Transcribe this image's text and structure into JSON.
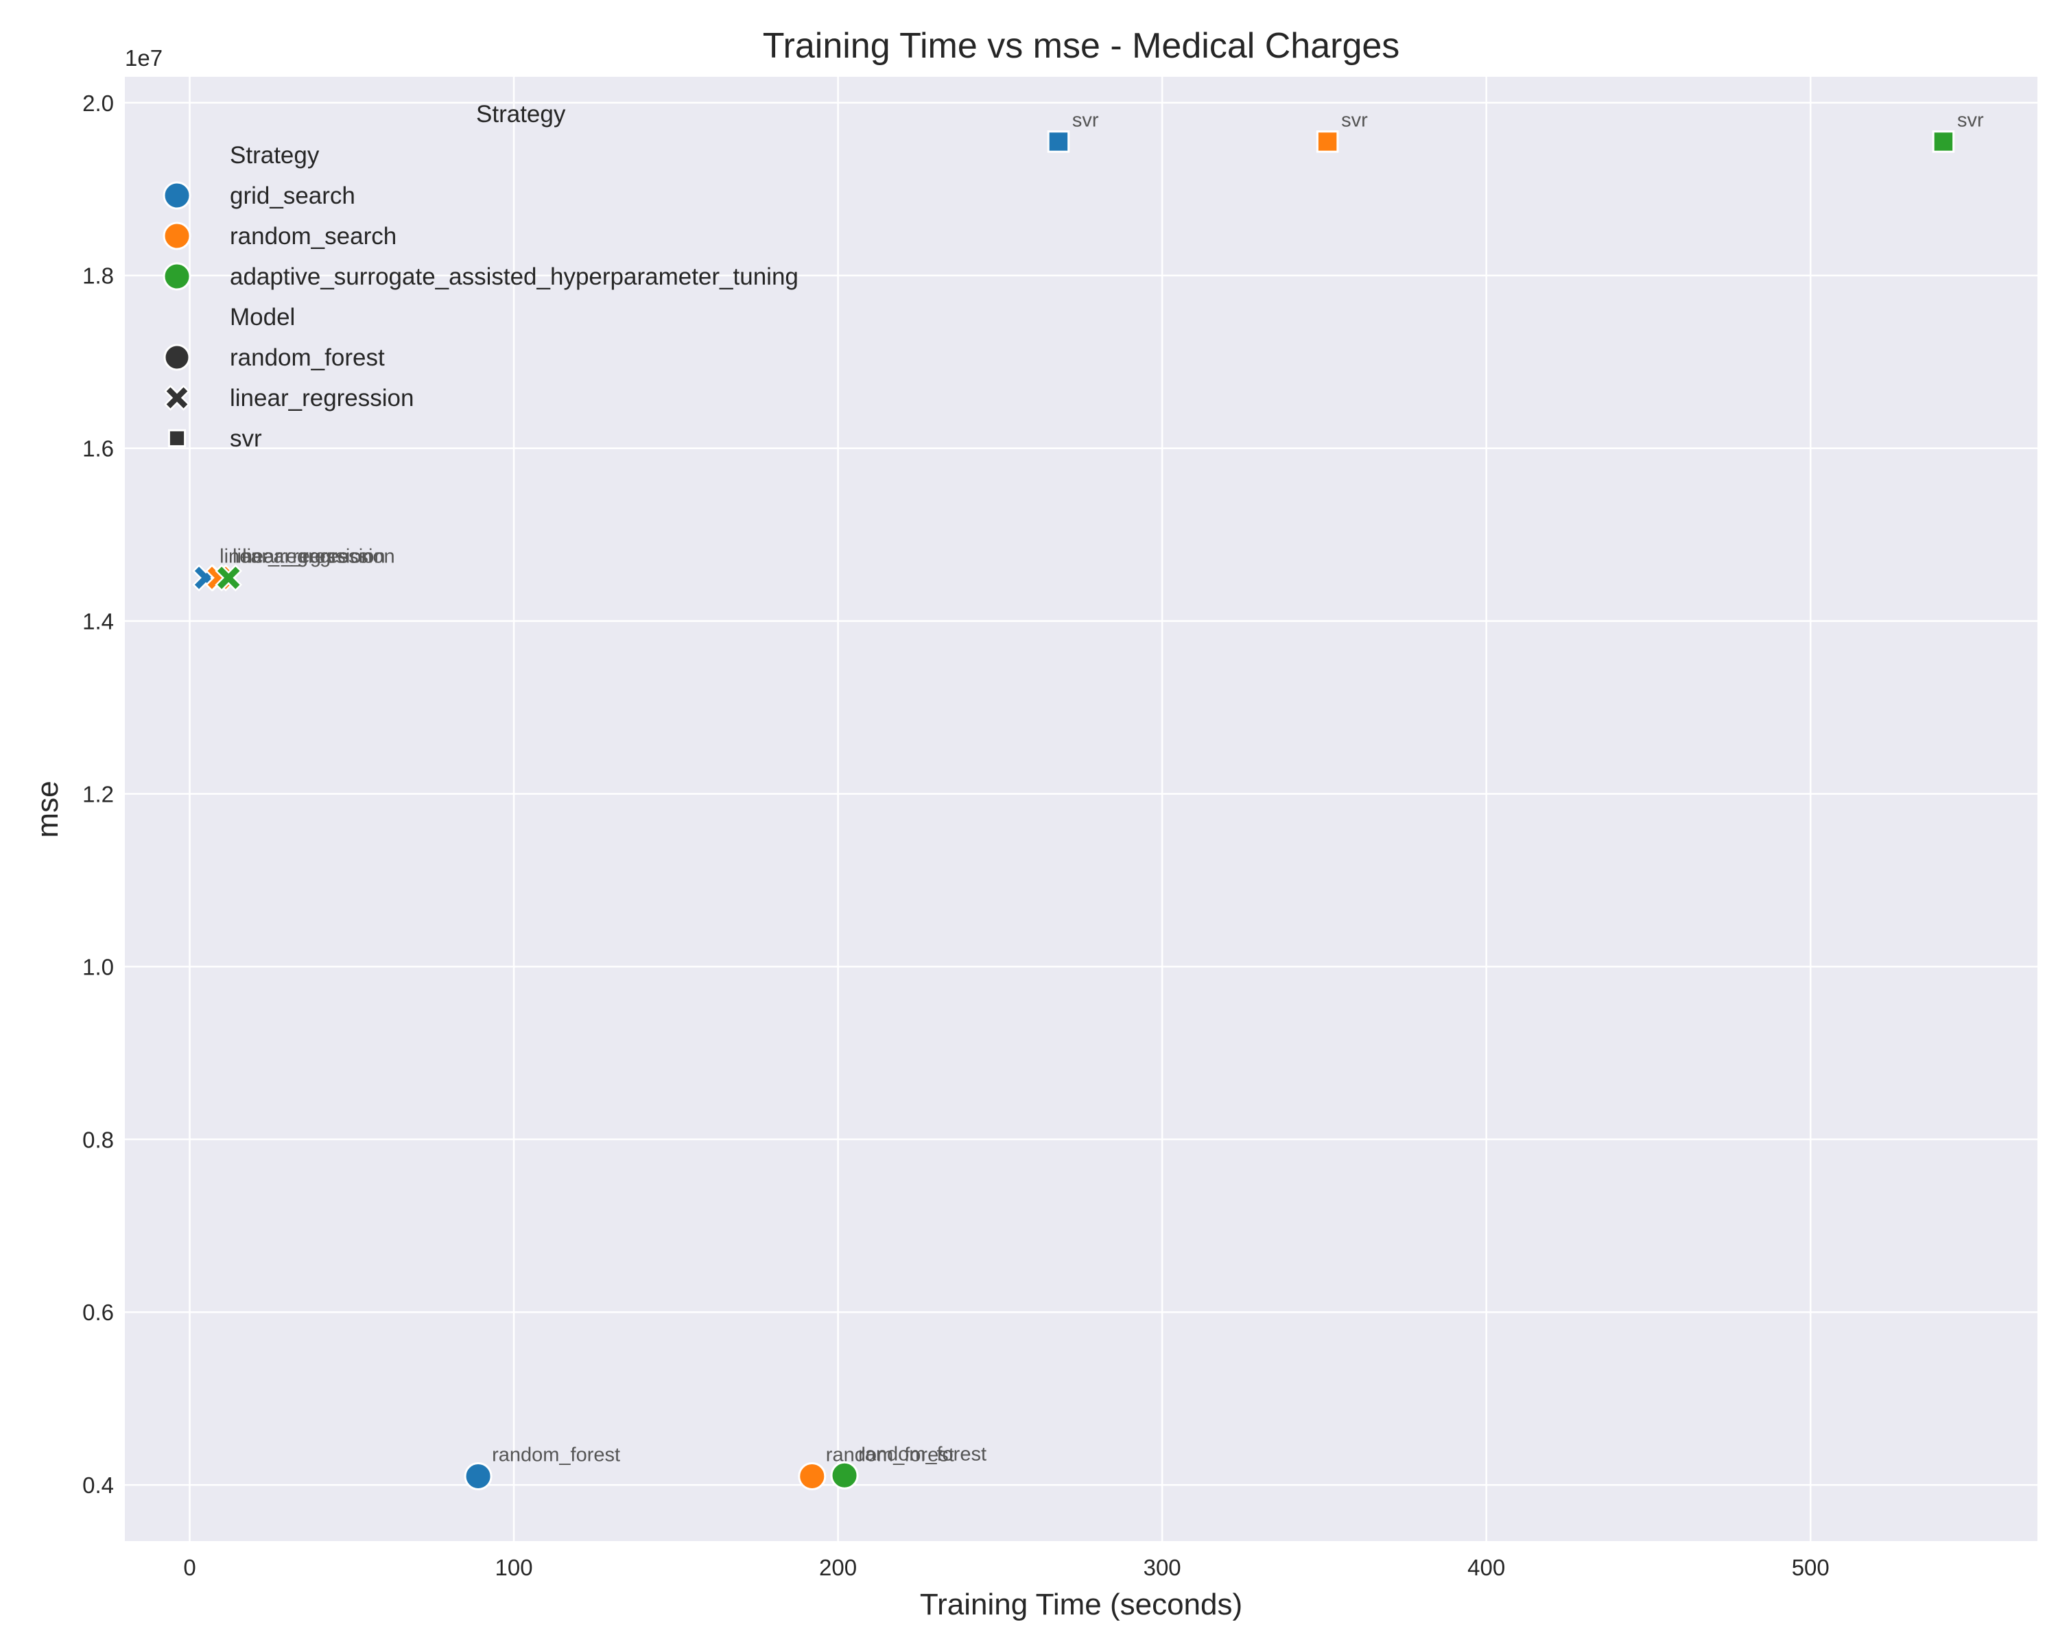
{
  "chart_data": {
    "type": "scatter",
    "title": "Training Time vs mse - Medical Charges",
    "xlabel": "Training Time (seconds)",
    "ylabel": "mse",
    "y_offset_text": "1e7",
    "xlim": [
      -20,
      570
    ],
    "ylim": [
      3.35,
      20.3
    ],
    "y_scale_note": "values in units of 1e7 shown as tick labels; data values in raw mse",
    "xticks": [
      0,
      100,
      200,
      300,
      400,
      500
    ],
    "xtick_labels": [
      "0",
      "100",
      "200",
      "300",
      "400",
      "500"
    ],
    "yticks": [
      4,
      6,
      8,
      10,
      12,
      14,
      16,
      18,
      20
    ],
    "ytick_labels": [
      "0.4",
      "0.6",
      "0.8",
      "1.0",
      "1.2",
      "1.4",
      "1.6",
      "1.8",
      "2.0"
    ],
    "grid": true,
    "legend_placement": "upper-left",
    "legend_floating_title": "Strategy",
    "legend": {
      "hue_title": "Strategy",
      "style_title": "Model",
      "strategies": [
        {
          "name": "grid_search",
          "color": "#1f77b4"
        },
        {
          "name": "random_search",
          "color": "#ff7f0e"
        },
        {
          "name": "adaptive_surrogate_assisted_hyperparameter_tuning",
          "color": "#2ca02c"
        }
      ],
      "models": [
        {
          "name": "random_forest",
          "marker": "circle"
        },
        {
          "name": "linear_regression",
          "marker": "x"
        },
        {
          "name": "svr",
          "marker": "square"
        }
      ]
    },
    "points": [
      {
        "strategy": "grid_search",
        "model": "random_forest",
        "x": 89,
        "y": 4100000,
        "label": "random_forest"
      },
      {
        "strategy": "random_search",
        "model": "random_forest",
        "x": 192,
        "y": 4100000,
        "label": "random_forest"
      },
      {
        "strategy": "adaptive_surrogate_assisted_hyperparameter_tuning",
        "model": "random_forest",
        "x": 202,
        "y": 4110000,
        "label": "random_forest"
      },
      {
        "strategy": "grid_search",
        "model": "linear_regression",
        "x": 5,
        "y": 14500000,
        "label": "linear_regression"
      },
      {
        "strategy": "random_search",
        "model": "linear_regression",
        "x": 9,
        "y": 14500000,
        "label": "linear_regression"
      },
      {
        "strategy": "adaptive_surrogate_assisted_hyperparameter_tuning",
        "model": "linear_regression",
        "x": 12,
        "y": 14500000,
        "label": "linear_regression"
      },
      {
        "strategy": "grid_search",
        "model": "svr",
        "x": 268,
        "y": 19550000,
        "label": "svr"
      },
      {
        "strategy": "random_search",
        "model": "svr",
        "x": 351,
        "y": 19550000,
        "label": "svr"
      },
      {
        "strategy": "adaptive_surrogate_assisted_hyperparameter_tuning",
        "model": "svr",
        "x": 541,
        "y": 19550000,
        "label": "svr"
      }
    ]
  },
  "colors": {
    "plot_background": "#eaeaf2",
    "grid": "#ffffff",
    "marker_edge": "#ffffff",
    "legend_marker": "#333333"
  }
}
